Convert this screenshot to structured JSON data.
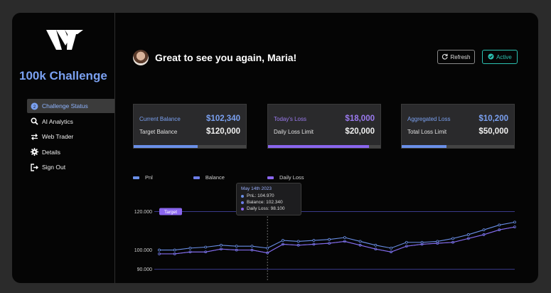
{
  "sidebar": {
    "title": "100k Challenge",
    "items": [
      {
        "label": "Challenge Status",
        "icon": "status-icon",
        "active": true
      },
      {
        "label": "AI Analytics",
        "icon": "search-icon",
        "active": false
      },
      {
        "label": "Web Trader",
        "icon": "swap-icon",
        "active": false
      },
      {
        "label": "Details",
        "icon": "gear-icon",
        "active": false
      },
      {
        "label": "Sign Out",
        "icon": "sign-out-icon",
        "active": false
      }
    ]
  },
  "header": {
    "greeting": "Great to see you again, Maria!",
    "refresh_label": "Refresh",
    "active_label": "Active"
  },
  "cards": [
    {
      "label1": "Current Balance",
      "value1": "$102,340",
      "label2": "Target Balance",
      "value2": "$120,000",
      "progress": 0.57,
      "accent": "#7aa0f0",
      "bar": "#6a8fe8"
    },
    {
      "label1": "Today's Loss",
      "value1": "$18,000",
      "label2": "Daily Loss Limit",
      "value2": "$20,000",
      "progress": 0.9,
      "accent": "#9b7af0",
      "bar": "#8a66ee"
    },
    {
      "label1": "Aggregated Loss",
      "value1": "$10,200",
      "label2": "Total Loss Limit",
      "value2": "$50,000",
      "progress": 0.4,
      "accent": "#7aa0f0",
      "bar": "#6a8fe8"
    }
  ],
  "colors": {
    "pnl": "#6a8fe8",
    "balance": "#6c7de8",
    "daily_loss": "#8a66ee",
    "grid": "#3a3a8a"
  },
  "chart_data": {
    "type": "line",
    "legend": [
      "Pnl",
      "Balance",
      "Daily Loss"
    ],
    "y_ticks": [
      "120.000",
      "100.000",
      "90.000"
    ],
    "ylim": [
      88,
      125
    ],
    "target_label": "Target",
    "target_value": 120,
    "x": [
      0,
      1,
      2,
      3,
      4,
      5,
      6,
      7,
      8,
      9,
      10,
      11,
      12,
      13,
      14,
      15,
      16,
      17,
      18,
      19,
      20,
      21,
      22,
      23
    ],
    "series": [
      {
        "name": "Pnl",
        "values": [
          100.0,
          100.0,
          101.0,
          101.5,
          102.5,
          102.0,
          102.0,
          101.0,
          105.0,
          104.5,
          105.0,
          105.5,
          106.5,
          104.5,
          102.5,
          101.0,
          104.0,
          104.0,
          104.5,
          106.0,
          108.0,
          110.5,
          113.0,
          114.5
        ],
        "dashed_segments": [
          6,
          7
        ]
      },
      {
        "name": "Balance",
        "values": [
          98.0,
          98.0,
          99.0,
          99.0,
          100.5,
          100.0,
          100.0,
          98.5,
          103.0,
          102.5,
          103.0,
          103.5,
          104.5,
          102.5,
          100.5,
          99.0,
          102.0,
          103.0,
          103.5,
          104.0,
          106.0,
          108.0,
          110.5,
          112.0
        ]
      },
      {
        "name": "Daily Loss",
        "values": [
          98.0,
          98.0,
          99.0,
          99.0,
          100.5,
          100.0,
          100.0,
          98.5,
          103.0,
          102.5,
          103.0,
          103.5,
          104.5,
          102.5,
          100.5,
          99.0,
          102.0,
          103.0,
          103.5,
          104.0,
          106.0,
          108.0,
          110.5,
          112.0
        ]
      }
    ],
    "tooltip": {
      "title": "May 14th 2023",
      "lines": [
        "PnL: 104.970",
        "Balance: 102.340",
        "Daily Loss: 98.100"
      ]
    }
  }
}
